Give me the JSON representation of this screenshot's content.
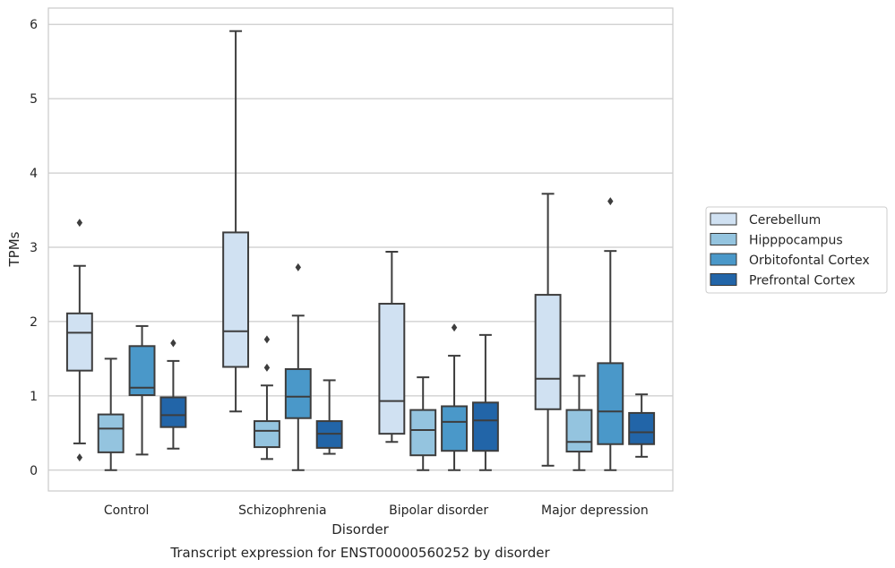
{
  "chart_data": {
    "type": "box",
    "title": "",
    "caption": "Transcript expression for ENST00000560252 by disorder",
    "xlabel": "Disorder",
    "ylabel": "TPMs",
    "ylim": [
      -0.28,
      6.22
    ],
    "yticks": [
      0,
      1,
      2,
      3,
      4,
      5,
      6
    ],
    "grid": "horizontal",
    "legend_position": "right",
    "categories": [
      "Control",
      "Schizophrenia",
      "Bipolar disorder",
      "Major depression"
    ],
    "series": [
      {
        "name": "Cerebellum",
        "color": "#d0e1f2",
        "boxes": [
          {
            "whislo": 0.36,
            "q1": 1.34,
            "med": 1.85,
            "q3": 2.11,
            "whishi": 2.75,
            "fliers": [
              0.17,
              3.33
            ]
          },
          {
            "whislo": 0.79,
            "q1": 1.39,
            "med": 1.87,
            "q3": 3.2,
            "whishi": 5.91,
            "fliers": []
          },
          {
            "whislo": 0.38,
            "q1": 0.49,
            "med": 0.93,
            "q3": 2.24,
            "whishi": 2.94,
            "fliers": []
          },
          {
            "whislo": 0.06,
            "q1": 0.82,
            "med": 1.23,
            "q3": 2.36,
            "whishi": 3.72,
            "fliers": []
          }
        ]
      },
      {
        "name": "Hipppocampus",
        "color": "#94c4df",
        "boxes": [
          {
            "whislo": 0.0,
            "q1": 0.24,
            "med": 0.56,
            "q3": 0.75,
            "whishi": 1.5,
            "fliers": []
          },
          {
            "whislo": 0.15,
            "q1": 0.31,
            "med": 0.53,
            "q3": 0.66,
            "whishi": 1.14,
            "fliers": [
              1.38,
              1.76
            ]
          },
          {
            "whislo": 0.0,
            "q1": 0.2,
            "med": 0.54,
            "q3": 0.81,
            "whishi": 1.25,
            "fliers": []
          },
          {
            "whislo": 0.0,
            "q1": 0.25,
            "med": 0.38,
            "q3": 0.81,
            "whishi": 1.27,
            "fliers": []
          }
        ]
      },
      {
        "name": "Orbitofontal Cortex",
        "color": "#4a98c9",
        "boxes": [
          {
            "whislo": 0.21,
            "q1": 1.01,
            "med": 1.11,
            "q3": 1.67,
            "whishi": 1.94,
            "fliers": []
          },
          {
            "whislo": 0.0,
            "q1": 0.7,
            "med": 0.99,
            "q3": 1.36,
            "whishi": 2.08,
            "fliers": [
              2.73
            ]
          },
          {
            "whislo": 0.0,
            "q1": 0.26,
            "med": 0.65,
            "q3": 0.86,
            "whishi": 1.54,
            "fliers": [
              1.92
            ]
          },
          {
            "whislo": 0.0,
            "q1": 0.35,
            "med": 0.79,
            "q3": 1.44,
            "whishi": 2.95,
            "fliers": [
              3.62
            ]
          }
        ]
      },
      {
        "name": "Prefrontal Cortex",
        "color": "#2265a8",
        "boxes": [
          {
            "whislo": 0.29,
            "q1": 0.58,
            "med": 0.74,
            "q3": 0.98,
            "whishi": 1.47,
            "fliers": [
              1.71
            ]
          },
          {
            "whislo": 0.22,
            "q1": 0.3,
            "med": 0.49,
            "q3": 0.66,
            "whishi": 1.21,
            "fliers": []
          },
          {
            "whislo": 0.0,
            "q1": 0.26,
            "med": 0.67,
            "q3": 0.91,
            "whishi": 1.82,
            "fliers": []
          },
          {
            "whislo": 0.18,
            "q1": 0.35,
            "med": 0.51,
            "q3": 0.77,
            "whishi": 1.02,
            "fliers": []
          }
        ]
      }
    ]
  }
}
